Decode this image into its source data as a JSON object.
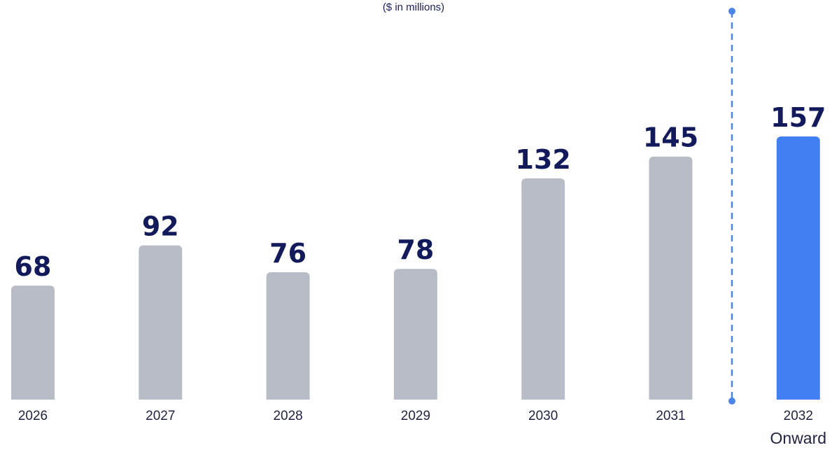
{
  "chart_data": {
    "type": "bar",
    "subtitle": "($ in millions)",
    "categories": [
      "2026",
      "2027",
      "2028",
      "2029",
      "2030",
      "2031",
      "2032\nOnward"
    ],
    "values": [
      68,
      92,
      76,
      78,
      132,
      145,
      157
    ],
    "highlighted_category": "2032\nOnward",
    "ylim": [
      0,
      157
    ],
    "grid": false,
    "legend": "none",
    "divider": "dashed vertical line between 2031 and 2032 Onward"
  },
  "colors": {
    "bar": "#b7bcc7",
    "highlight_bar": "#4180f2",
    "divider": "#4a86e8",
    "value_label": "#131a5c",
    "tick_label": "#1f2340"
  }
}
